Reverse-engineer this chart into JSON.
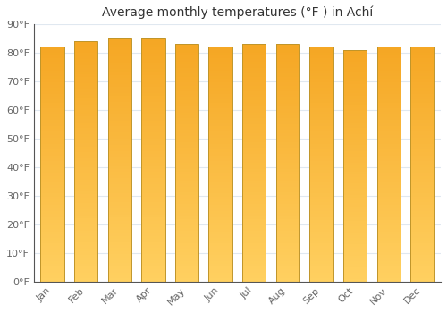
{
  "title": "Average monthly temperatures (°F ) in Achí",
  "months": [
    "Jan",
    "Feb",
    "Mar",
    "Apr",
    "May",
    "Jun",
    "Jul",
    "Aug",
    "Sep",
    "Oct",
    "Nov",
    "Dec"
  ],
  "values": [
    82,
    84,
    85,
    85,
    83,
    82,
    83,
    83,
    82,
    81,
    82,
    82
  ],
  "bar_color_top": "#F5A623",
  "bar_color_bottom": "#FFD060",
  "ylim": [
    0,
    90
  ],
  "yticks": [
    0,
    10,
    20,
    30,
    40,
    50,
    60,
    70,
    80,
    90
  ],
  "ytick_labels": [
    "0°F",
    "10°F",
    "20°F",
    "30°F",
    "40°F",
    "50°F",
    "60°F",
    "70°F",
    "80°F",
    "90°F"
  ],
  "bg_color": "#ffffff",
  "plot_bg_color": "#ffffff",
  "title_fontsize": 10,
  "tick_fontsize": 8,
  "grid_color": "#e0e8f0",
  "bar_edge_color": "#c0952a",
  "bar_edge_width": 0.7,
  "bar_width": 0.7
}
